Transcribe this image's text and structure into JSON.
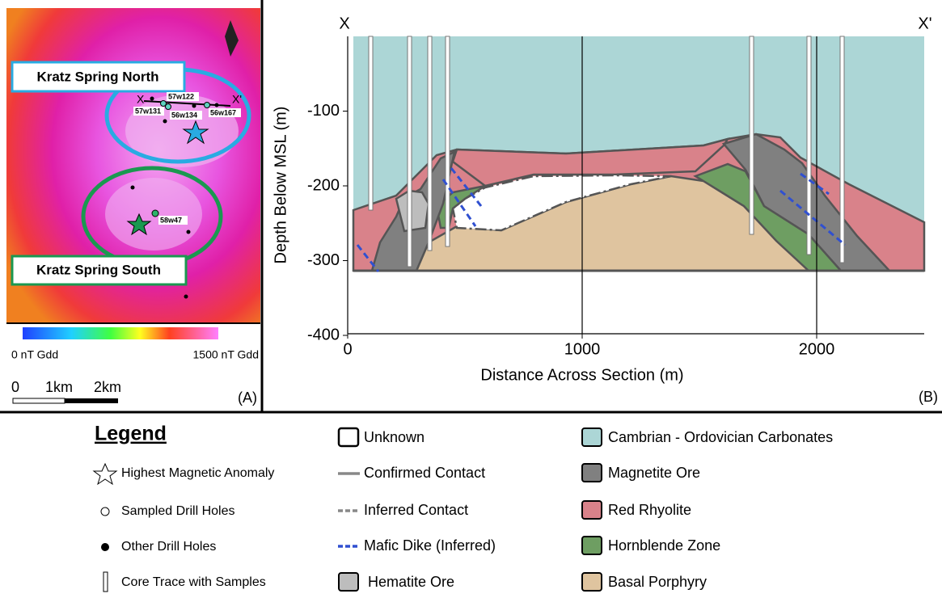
{
  "panel_a": {
    "north_label": "Kratz Spring North",
    "south_label": "Kratz Spring South",
    "x_label": "X",
    "x_prime_label": "X'",
    "drill_labels": [
      "57w122",
      "57w131",
      "56w134",
      "56w167",
      "58w47"
    ],
    "colorbar_min": "0 nT Gdd",
    "colorbar_max": "1500 nT Gdd",
    "scale_labels": [
      "0",
      "1km",
      "2km"
    ],
    "panel_label": "(A)"
  },
  "panel_b": {
    "end_labels": [
      "X",
      "X'"
    ],
    "x_label": "Distance Across Section (m)",
    "y_label": "Depth Below MSL (m)",
    "xticks": [
      0,
      1000,
      2000
    ],
    "yticks": [
      -100,
      -200,
      -300,
      -400
    ],
    "panel_label": "(B)"
  },
  "legend": {
    "title": "Legend",
    "left": [
      "Highest Magnetic Anomaly",
      "Sampled Drill Holes",
      "Other Drill Holes",
      "Core Trace with Samples"
    ],
    "middle": [
      "Unknown",
      "Confirmed Contact",
      "Inferred Contact",
      "Mafic Dike (Inferred)",
      "Hematite Ore"
    ],
    "right": [
      "Cambrian - Ordovician Carbonates",
      "Magnetite Ore",
      "Red Rhyolite",
      "Hornblende Zone",
      "Basal Porphyry"
    ]
  }
}
